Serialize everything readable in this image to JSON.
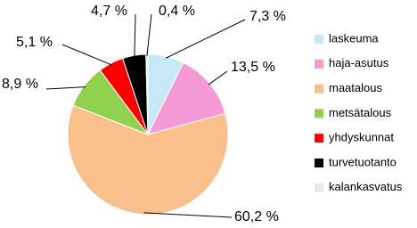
{
  "chart_data": {
    "type": "pie",
    "categories": [
      "laskeuma",
      "haja-asutus",
      "maatalous",
      "metsätalous",
      "yhdyskunnat",
      "turvetuotanto",
      "kalankasvatus"
    ],
    "values": [
      7.3,
      13.5,
      60.2,
      8.9,
      5.1,
      4.7,
      0.4
    ],
    "value_labels": [
      "7,3 %",
      "13,5 %",
      "60,2 %",
      "8,9 %",
      "5,1 %",
      "4,7 %",
      "0,4 %"
    ],
    "colors": [
      "#c6e9f5",
      "#f59ad6",
      "#f9c08e",
      "#92d050",
      "#ff0000",
      "#000000",
      "#ede9dc"
    ],
    "legend": "right"
  }
}
